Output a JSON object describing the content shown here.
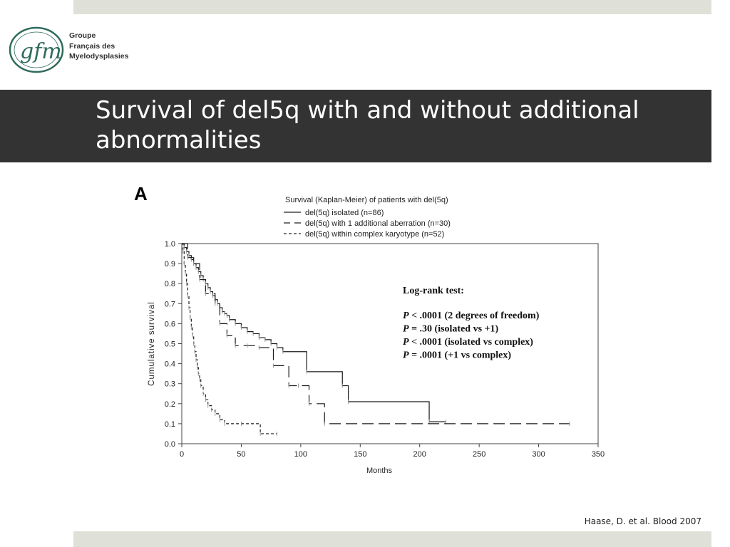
{
  "header": {
    "logo_mark": "gfm",
    "logo_lines": [
      "Groupe",
      "Français des",
      "Myelodysplasies"
    ]
  },
  "slide": {
    "title": "Survival of del5q with and without additional abnormalities",
    "citation": "Haase, D. et al. Blood 2007"
  },
  "colors": {
    "title_bar": "#333333",
    "accent_bar": "#dfe1d8",
    "logo_green": "#2f6b5c"
  },
  "chart_data": {
    "type": "line",
    "panel_label": "A",
    "title": "Survival (Kaplan-Meier) of patients with del(5q)",
    "xlabel": "Months",
    "ylabel": "Cumulative survival",
    "xlim": [
      0,
      350
    ],
    "ylim": [
      0,
      1.0
    ],
    "xticks": [
      0,
      50,
      100,
      150,
      200,
      250,
      300,
      350
    ],
    "yticks": [
      0.0,
      0.1,
      0.2,
      0.3,
      0.4,
      0.5,
      0.6,
      0.7,
      0.8,
      0.9,
      1.0
    ],
    "ytick_labels": [
      "0.0",
      "0.1",
      "0.2",
      "0.3",
      "0.4",
      "0.5",
      "0.6",
      "0.7",
      "0.8",
      "0.9",
      "1.0"
    ],
    "legend_position": "top",
    "series": [
      {
        "name": "del(5q) isolated (n=86)",
        "style": "solid",
        "x": [
          0,
          2,
          4,
          6,
          8,
          10,
          12,
          14,
          16,
          18,
          20,
          22,
          24,
          26,
          28,
          30,
          32,
          34,
          36,
          38,
          40,
          45,
          50,
          55,
          60,
          65,
          70,
          75,
          80,
          85,
          105,
          135,
          140,
          208,
          222
        ],
        "y": [
          1.0,
          0.98,
          0.96,
          0.94,
          0.92,
          0.9,
          0.88,
          0.86,
          0.84,
          0.82,
          0.8,
          0.78,
          0.76,
          0.74,
          0.72,
          0.7,
          0.68,
          0.66,
          0.65,
          0.64,
          0.62,
          0.6,
          0.58,
          0.56,
          0.55,
          0.53,
          0.52,
          0.5,
          0.48,
          0.46,
          0.36,
          0.29,
          0.21,
          0.11,
          0.11
        ]
      },
      {
        "name": "del(5q) with 1 additional aberration (n=30)",
        "style": "long-dash",
        "x": [
          0,
          5,
          10,
          15,
          20,
          28,
          32,
          38,
          45,
          55,
          65,
          77,
          90,
          98,
          107,
          120,
          326
        ],
        "y": [
          1.0,
          0.93,
          0.9,
          0.82,
          0.75,
          0.7,
          0.6,
          0.54,
          0.49,
          0.49,
          0.48,
          0.39,
          0.29,
          0.29,
          0.2,
          0.1,
          0.1
        ]
      },
      {
        "name": "del(5q) within complex karyotype (n=52)",
        "style": "short-dash",
        "x": [
          0,
          1,
          2,
          3,
          4,
          5,
          6,
          7,
          8,
          9,
          10,
          11,
          12,
          13,
          14,
          15,
          16,
          18,
          20,
          22,
          25,
          28,
          32,
          36,
          50,
          66,
          80
        ],
        "y": [
          1.0,
          0.96,
          0.9,
          0.85,
          0.8,
          0.74,
          0.68,
          0.63,
          0.58,
          0.54,
          0.5,
          0.46,
          0.42,
          0.38,
          0.35,
          0.32,
          0.29,
          0.25,
          0.22,
          0.19,
          0.17,
          0.15,
          0.12,
          0.1,
          0.1,
          0.05,
          0.05
        ]
      }
    ],
    "annotation": {
      "heading": "Log-rank test:",
      "lines": [
        {
          "p": "P",
          "rest": " < .0001 (2 degrees of freedom)"
        },
        {
          "p": "P",
          "rest": " = .30 (isolated vs +1)"
        },
        {
          "p": "P",
          "rest": " < .0001 (isolated vs complex)"
        },
        {
          "p": "P",
          "rest": " = .0001 (+1 vs complex)"
        }
      ]
    }
  }
}
